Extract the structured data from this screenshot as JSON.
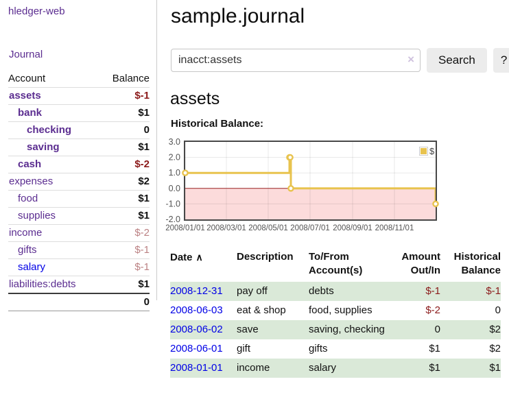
{
  "app": {
    "brand": "hledger-web",
    "nav_journal": "Journal"
  },
  "sidebar": {
    "columns": {
      "account": "Account",
      "balance": "Balance"
    },
    "accounts": [
      {
        "name": "assets",
        "indent": 1,
        "balance": "$-1",
        "bold": true,
        "blue": false
      },
      {
        "name": "bank",
        "indent": 2,
        "balance": "$1",
        "bold": true,
        "blue": false
      },
      {
        "name": "checking",
        "indent": 3,
        "balance": "0",
        "bold": true,
        "blue": false
      },
      {
        "name": "saving",
        "indent": 3,
        "balance": "$1",
        "bold": true,
        "blue": false
      },
      {
        "name": "cash",
        "indent": 2,
        "balance": "$-2",
        "bold": true,
        "blue": false
      },
      {
        "name": "expenses",
        "indent": 1,
        "balance": "$2",
        "bold": false,
        "blue": false
      },
      {
        "name": "food",
        "indent": 2,
        "balance": "$1",
        "bold": false,
        "blue": false
      },
      {
        "name": "supplies",
        "indent": 2,
        "balance": "$1",
        "bold": false,
        "blue": false
      },
      {
        "name": "income",
        "indent": 1,
        "balance": "$-2",
        "bold": false,
        "blue": false
      },
      {
        "name": "gifts",
        "indent": 2,
        "balance": "$-1",
        "bold": false,
        "blue": false
      },
      {
        "name": "salary",
        "indent": 2,
        "balance": "$-1",
        "bold": false,
        "blue": true
      },
      {
        "name": "liabilities:debts",
        "indent": 1,
        "balance": "$1",
        "bold": false,
        "blue": false
      }
    ],
    "total": "0"
  },
  "header": {
    "title": "sample.journal"
  },
  "search": {
    "value": "inacct:assets",
    "clear_icon": "×",
    "button_label": "Search",
    "help_label": "?"
  },
  "account_page": {
    "title": "assets",
    "section_label": "Historical Balance:"
  },
  "chart_data": {
    "type": "line",
    "step": true,
    "title": "Historical Balance:",
    "legend": "$",
    "legend_position": "top-right",
    "grid": true,
    "ylim": [
      -2,
      3
    ],
    "yticks": [
      3,
      2,
      1,
      0,
      -1,
      -2
    ],
    "ytick_labels": [
      "3.0",
      "2.0",
      "1.0",
      "0.0",
      "-1.0",
      "-2.0"
    ],
    "xrange": [
      "2008-01-01",
      "2008-12-31"
    ],
    "xticks": [
      "2008/01/01",
      "2008/03/01",
      "2008/05/01",
      "2008/07/01",
      "2008/09/01",
      "2008/11/01"
    ],
    "series": [
      {
        "name": "$",
        "points": [
          [
            "2008-01-01",
            1
          ],
          [
            "2008-06-01",
            2
          ],
          [
            "2008-06-02",
            2
          ],
          [
            "2008-06-03",
            0
          ],
          [
            "2008-12-31",
            -1
          ]
        ]
      }
    ]
  },
  "register": {
    "columns": [
      "Date",
      "Description",
      "To/From Account(s)",
      "Amount Out/In",
      "Historical Balance"
    ],
    "sort_icon": "∧",
    "rows": [
      {
        "date": "2008-12-31",
        "description": "pay off",
        "accounts": "debts",
        "amount": "$-1",
        "balance": "$-1"
      },
      {
        "date": "2008-06-03",
        "description": "eat & shop",
        "accounts": "food, supplies",
        "amount": "$-2",
        "balance": "0"
      },
      {
        "date": "2008-06-02",
        "description": "save",
        "accounts": "saving, checking",
        "amount": "0",
        "balance": "$2"
      },
      {
        "date": "2008-06-01",
        "description": "gift",
        "accounts": "gifts",
        "amount": "$1",
        "balance": "$2"
      },
      {
        "date": "2008-01-01",
        "description": "income",
        "accounts": "salary",
        "amount": "$1",
        "balance": "$1"
      }
    ]
  },
  "colors": {
    "accent_purple": "#5b2d90",
    "link_blue": "#0000e6",
    "negative_strong": "#8b1a1a",
    "negative_soft": "#bb8183",
    "row_green": "#dae9d8",
    "chart_line": "#e8c34e",
    "chart_negative_fill": "#fcdbdb",
    "chart_zero_line": "#972222",
    "chart_tick_text": "#545454"
  }
}
